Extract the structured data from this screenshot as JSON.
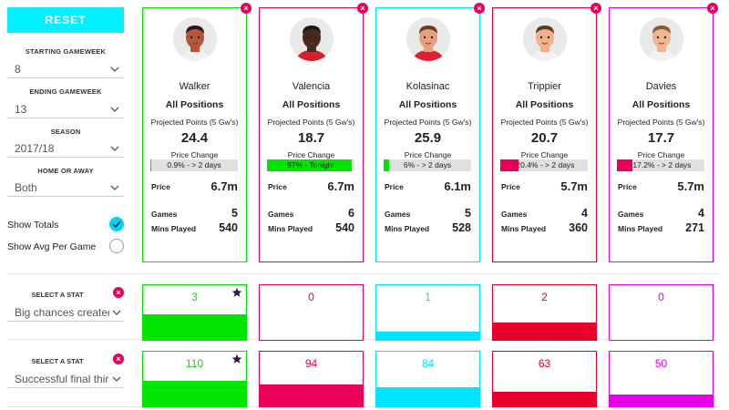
{
  "sidebar": {
    "reset_label": "RESET",
    "starting_gameweek": {
      "label": "STARTING GAMEWEEK",
      "value": "8"
    },
    "ending_gameweek": {
      "label": "ENDING GAMEWEEK",
      "value": "13"
    },
    "season": {
      "label": "SEASON",
      "value": "2017/18"
    },
    "home_or_away": {
      "label": "HOME OR AWAY",
      "value": "Both"
    },
    "show_totals": {
      "label": "Show Totals",
      "checked": true
    },
    "show_avg": {
      "label": "Show Avg Per Game",
      "checked": false
    }
  },
  "labels": {
    "projected": "Projected Points (5 Gw's)",
    "price_change": "Price Change",
    "price": "Price",
    "games": "Games",
    "mins": "Mins Played"
  },
  "players": [
    {
      "name": "Walker",
      "position": "All Positions",
      "projected": "24.4",
      "price_change_text": "0.9% - > 2 days",
      "price_change_pct": 0.9,
      "price": "6.7m",
      "games": "5",
      "mins": "540",
      "color": "#00e600",
      "avatar": "player-avatar-icon"
    },
    {
      "name": "Valencia",
      "position": "All Positions",
      "projected": "18.7",
      "price_change_text": "97% - Tonight",
      "price_change_pct": 97,
      "price": "6.7m",
      "games": "6",
      "mins": "540",
      "color": "#e8005a",
      "avatar": "player-avatar-icon"
    },
    {
      "name": "Kolasinac",
      "position": "All Positions",
      "projected": "25.9",
      "price_change_text": "6% - > 2 days",
      "price_change_pct": 6,
      "price": "6.1m",
      "games": "5",
      "mins": "528",
      "color": "#00e5ff",
      "avatar": "player-avatar-icon"
    },
    {
      "name": "Trippier",
      "position": "All Positions",
      "projected": "20.7",
      "price_change_text": "-20.4% - > 2 days",
      "price_change_pct": -20.4,
      "price": "5.7m",
      "games": "4",
      "mins": "360",
      "color": "#e8002a",
      "avatar": "player-avatar-icon"
    },
    {
      "name": "Davies",
      "position": "All Positions",
      "projected": "17.7",
      "price_change_text": "-17.2% - > 2 days",
      "price_change_pct": -17.2,
      "price": "5.7m",
      "games": "4",
      "mins": "271",
      "color": "#e600e6",
      "avatar": "player-avatar-icon"
    }
  ],
  "stat_rows": [
    {
      "label": "SELECT A STAT",
      "selected": "Big chances created",
      "values": [
        "3",
        "0",
        "1",
        "2",
        "0"
      ],
      "fill": [
        1.0,
        0.0,
        0.33,
        0.67,
        0.0
      ]
    },
    {
      "label": "SELECT A STAT",
      "selected": "Successful final third passes",
      "values": [
        "110",
        "94",
        "84",
        "63",
        "50"
      ],
      "fill": [
        1.0,
        0.85,
        0.76,
        0.57,
        0.45
      ]
    }
  ],
  "colors": {
    "accent": "#05f0ff",
    "remove": "#e8005a",
    "negative_bar": "#e8005a"
  }
}
